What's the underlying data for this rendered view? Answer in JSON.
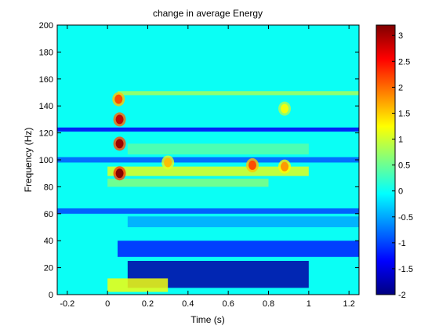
{
  "chart_data": {
    "type": "heatmap",
    "title": "change in average Energy",
    "xlabel": "Time (s)",
    "ylabel": "Frequency (Hz)",
    "xlim": [
      -0.25,
      1.25
    ],
    "ylim": [
      0,
      200
    ],
    "x_ticks": [
      -0.2,
      0,
      0.2,
      0.4,
      0.6,
      0.8,
      1,
      1.2
    ],
    "x_tick_labels": [
      "-0.2",
      "0",
      "0.2",
      "0.4",
      "0.6",
      "0.8",
      "1",
      "1.2"
    ],
    "y_ticks": [
      0,
      20,
      40,
      60,
      80,
      100,
      120,
      140,
      160,
      180,
      200
    ],
    "y_tick_labels": [
      "0",
      "20",
      "40",
      "60",
      "80",
      "100",
      "120",
      "140",
      "160",
      "180",
      "200"
    ],
    "colormap": "jet",
    "clim": [
      -2,
      3.2
    ],
    "colorbar_ticks": [
      -2,
      -1.5,
      -1,
      -0.5,
      0,
      0.5,
      1,
      1.5,
      2,
      2.5,
      3
    ],
    "colorbar_tick_labels": [
      "-2",
      "-1.5",
      "-1",
      "-0.5",
      "0",
      "0.5",
      "1",
      "1.5",
      "2",
      "2.5",
      "3"
    ],
    "colorbar_location": "right",
    "grid": false,
    "background_value": 0,
    "features": [
      {
        "kind": "band",
        "y0": 121,
        "y1": 124,
        "x0": -0.25,
        "x1": 1.25,
        "value": -1.4
      },
      {
        "kind": "band",
        "y0": 98,
        "y1": 102,
        "x0": -0.25,
        "x1": 1.25,
        "value": -0.9
      },
      {
        "kind": "band",
        "y0": 88,
        "y1": 95,
        "x0": 0.0,
        "x1": 1.0,
        "value": 1.1
      },
      {
        "kind": "band",
        "y0": 80,
        "y1": 86,
        "x0": 0.0,
        "x1": 0.8,
        "value": 0.6
      },
      {
        "kind": "band",
        "y0": 60,
        "y1": 64,
        "x0": -0.25,
        "x1": 1.25,
        "value": -1.0
      },
      {
        "kind": "band",
        "y0": 50,
        "y1": 58,
        "x0": 0.1,
        "x1": 1.25,
        "value": -0.5
      },
      {
        "kind": "band",
        "y0": 28,
        "y1": 40,
        "x0": 0.05,
        "x1": 1.25,
        "value": -1.2
      },
      {
        "kind": "band",
        "y0": 5,
        "y1": 25,
        "x0": 0.1,
        "x1": 1.0,
        "value": -1.8
      },
      {
        "kind": "band",
        "y0": 2,
        "y1": 12,
        "x0": 0.0,
        "x1": 0.3,
        "value": 1.2
      },
      {
        "kind": "band",
        "y0": 148,
        "y1": 151,
        "x0": 0.05,
        "x1": 1.25,
        "value": 0.8
      },
      {
        "kind": "band",
        "y0": 104,
        "y1": 112,
        "x0": 0.1,
        "x1": 1.0,
        "value": 0.4
      },
      {
        "kind": "spot",
        "x": 0.06,
        "y": 90,
        "value": 3.2
      },
      {
        "kind": "spot",
        "x": 0.06,
        "y": 112,
        "value": 3.1
      },
      {
        "kind": "spot",
        "x": 0.06,
        "y": 130,
        "value": 2.9
      },
      {
        "kind": "spot",
        "x": 0.055,
        "y": 145,
        "value": 2.2
      },
      {
        "kind": "spot",
        "x": 0.3,
        "y": 98,
        "value": 1.6
      },
      {
        "kind": "spot",
        "x": 0.72,
        "y": 96,
        "value": 2.2
      },
      {
        "kind": "spot",
        "x": 0.88,
        "y": 95,
        "value": 1.8
      },
      {
        "kind": "spot",
        "x": 0.88,
        "y": 138,
        "value": 1.2
      }
    ]
  }
}
